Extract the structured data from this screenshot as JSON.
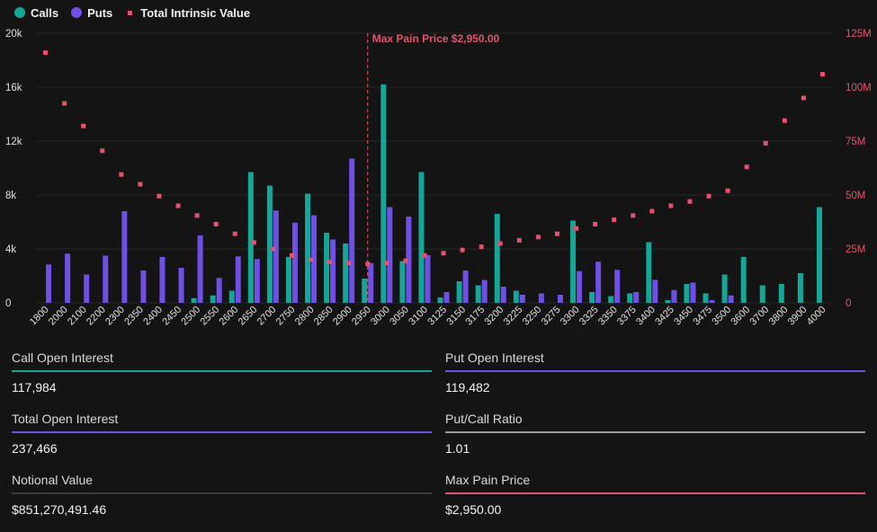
{
  "colors": {
    "calls": "#14a697",
    "puts": "#6f4fe6",
    "intrinsic": "#e8506f",
    "grid": "#262626",
    "gray_line": "#9a9a9a",
    "dark_line": "#3a3a3a"
  },
  "legend": {
    "calls": "Calls",
    "puts": "Puts",
    "intrinsic": "Total Intrinsic Value"
  },
  "chart_data": {
    "type": "bar",
    "categories": [
      "1800",
      "2000",
      "2100",
      "2200",
      "2300",
      "2350",
      "2400",
      "2450",
      "2500",
      "2550",
      "2600",
      "2650",
      "2700",
      "2750",
      "2800",
      "2850",
      "2900",
      "2950",
      "3000",
      "3050",
      "3100",
      "3125",
      "3150",
      "3175",
      "3200",
      "3225",
      "3250",
      "3275",
      "3300",
      "3325",
      "3350",
      "3375",
      "3400",
      "3425",
      "3450",
      "3475",
      "3500",
      "3600",
      "3700",
      "3800",
      "3900",
      "4000"
    ],
    "series": [
      {
        "name": "Calls",
        "axis": "left",
        "values": [
          0,
          0,
          0,
          0,
          0,
          0,
          0,
          0,
          350,
          550,
          900,
          9700,
          8700,
          3400,
          8100,
          5200,
          4400,
          1800,
          16200,
          3100,
          9700,
          400,
          1600,
          1300,
          6600,
          900,
          0,
          0,
          6100,
          800,
          500,
          700,
          4500,
          200,
          1400,
          700,
          2100,
          3400,
          1300,
          1400,
          2200,
          7100
        ]
      },
      {
        "name": "Puts",
        "axis": "left",
        "values": [
          2850,
          3650,
          2100,
          3500,
          6800,
          2400,
          3400,
          2600,
          5000,
          1850,
          3450,
          3250,
          6850,
          5950,
          6500,
          4700,
          10700,
          2950,
          7100,
          6400,
          3550,
          800,
          2400,
          1700,
          1200,
          600,
          700,
          600,
          2350,
          3050,
          2450,
          800,
          1700,
          950,
          1500,
          200,
          550,
          0,
          0,
          0,
          0,
          0
        ]
      },
      {
        "name": "Total Intrinsic Value",
        "axis": "right",
        "kind": "scatter",
        "values": [
          116000000,
          92500000,
          82000000,
          70500000,
          59500000,
          55000000,
          49500000,
          45000000,
          40500000,
          36500000,
          32000000,
          28000000,
          25000000,
          22000000,
          20000000,
          19000000,
          18500000,
          18000000,
          18500000,
          19500000,
          22000000,
          23000000,
          24500000,
          26000000,
          27500000,
          29000000,
          30500000,
          32000000,
          34500000,
          36500000,
          38500000,
          40500000,
          42500000,
          45000000,
          47000000,
          49500000,
          52000000,
          63000000,
          74000000,
          84500000,
          95000000,
          106000000
        ]
      }
    ],
    "left_ticks": [
      "0",
      "4k",
      "8k",
      "12k",
      "16k",
      "20k"
    ],
    "right_ticks": [
      "0",
      "25M",
      "50M",
      "75M",
      "100M",
      "125M"
    ],
    "ylim": [
      0,
      20000
    ],
    "ylim_right": [
      0,
      125000000
    ],
    "grid": true,
    "legend_position": "top-left",
    "max_pain_index": 17,
    "max_pain_label": "Max Pain Price $2,950.00"
  },
  "stats": [
    {
      "label": "Call Open Interest",
      "value": "117,984",
      "line_color": "#14a697"
    },
    {
      "label": "Put Open Interest",
      "value": "119,482",
      "line_color": "#6f4fe6"
    },
    {
      "label": "Total Open Interest",
      "value": "237,466",
      "line_color": "#6f4fe6"
    },
    {
      "label": "Put/Call Ratio",
      "value": "1.01",
      "line_color": "#9a9a9a"
    },
    {
      "label": "Notional Value",
      "value": "$851,270,491.46",
      "line_color": "#3a3a3a"
    },
    {
      "label": "Max Pain Price",
      "value": "$2,950.00",
      "line_color": "#e8506f"
    }
  ]
}
